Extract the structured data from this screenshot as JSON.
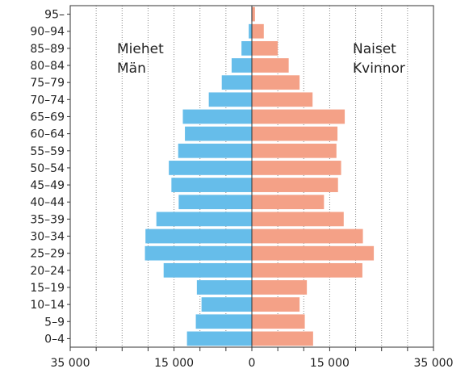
{
  "chart_data": {
    "type": "bar",
    "orientation": "horizontal",
    "subtype": "population-pyramid",
    "categories": [
      "0–4",
      "5–9",
      "10–14",
      "15–19",
      "20–24",
      "25–29",
      "30–34",
      "35–39",
      "40–44",
      "45–49",
      "50–54",
      "55–59",
      "60–64",
      "65–69",
      "70–74",
      "75–79",
      "80–84",
      "85–89",
      "90–94",
      "95–"
    ],
    "series": [
      {
        "name": "Miehet Män",
        "side": "left",
        "color": "#66bdea",
        "values": [
          12500,
          10800,
          9700,
          10600,
          17000,
          20600,
          20500,
          18400,
          14100,
          15500,
          16000,
          14200,
          12900,
          13300,
          8300,
          5800,
          3900,
          2000,
          600,
          100
        ]
      },
      {
        "name": "Naiset Kvinnor",
        "side": "right",
        "color": "#f4a187",
        "values": [
          11800,
          10200,
          9200,
          10600,
          21300,
          23500,
          21400,
          17700,
          13900,
          16600,
          17200,
          16300,
          16500,
          17900,
          11700,
          9200,
          7100,
          5000,
          2300,
          600
        ]
      }
    ],
    "xlim": [
      -35000,
      35000
    ],
    "xtick_values": [
      -35000,
      -15000,
      0,
      15000,
      35000
    ],
    "xtick_labels": [
      "35 000",
      "15 000",
      "0",
      "15 000",
      "35 000"
    ],
    "minor_gridlines_every": 5000,
    "grid": true,
    "legend": "inline-text"
  },
  "labels": {
    "left_line1": "Miehet",
    "left_line2": "Män",
    "right_line1": "Naiset",
    "right_line2": "Kvinnor"
  }
}
